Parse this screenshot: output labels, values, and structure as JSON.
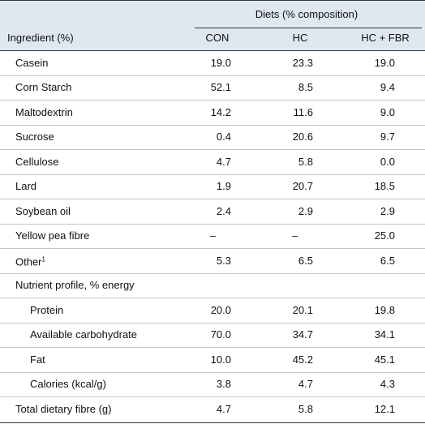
{
  "table": {
    "group_header": "Diets (% composition)",
    "columns": [
      "Ingredient (%)",
      "CON",
      "HC",
      "HC + FBR"
    ],
    "rows": [
      {
        "label": "Casein",
        "values": [
          "19.0",
          "23.3",
          "19.0"
        ]
      },
      {
        "label": "Corn Starch",
        "values": [
          "52.1",
          "8.5",
          "9.4"
        ]
      },
      {
        "label": "Maltodextrin",
        "values": [
          "14.2",
          "11.6",
          "9.0"
        ]
      },
      {
        "label": "Sucrose",
        "values": [
          "0.4",
          "20.6",
          "9.7"
        ]
      },
      {
        "label": "Cellulose",
        "values": [
          "4.7",
          "5.8",
          "0.0"
        ]
      },
      {
        "label": "Lard",
        "values": [
          "1.9",
          "20.7",
          "18.5"
        ]
      },
      {
        "label": "Soybean oil",
        "values": [
          "2.4",
          "2.9",
          "2.9"
        ]
      },
      {
        "label": "Yellow pea fibre",
        "values": [
          "–",
          "–",
          "25.0"
        ]
      },
      {
        "label": "Other",
        "footnote": "1",
        "values": [
          "5.3",
          "6.5",
          "6.5"
        ]
      },
      {
        "label": "Nutrient profile, % energy",
        "subrows": [
          {
            "label": "Protein",
            "values": [
              "20.0",
              "20.1",
              "19.8"
            ]
          },
          {
            "label": "Available carbohydrate",
            "values": [
              "70.0",
              "34.7",
              "34.1"
            ]
          },
          {
            "label": "Fat",
            "values": [
              "10.0",
              "45.2",
              "45.1"
            ]
          },
          {
            "label": "Calories (kcal/g)",
            "values": [
              "3.8",
              "4.7",
              "4.3"
            ]
          }
        ]
      },
      {
        "label": "Total dietary fibre (g)",
        "values": [
          "4.7",
          "5.8",
          "12.1"
        ]
      }
    ]
  }
}
